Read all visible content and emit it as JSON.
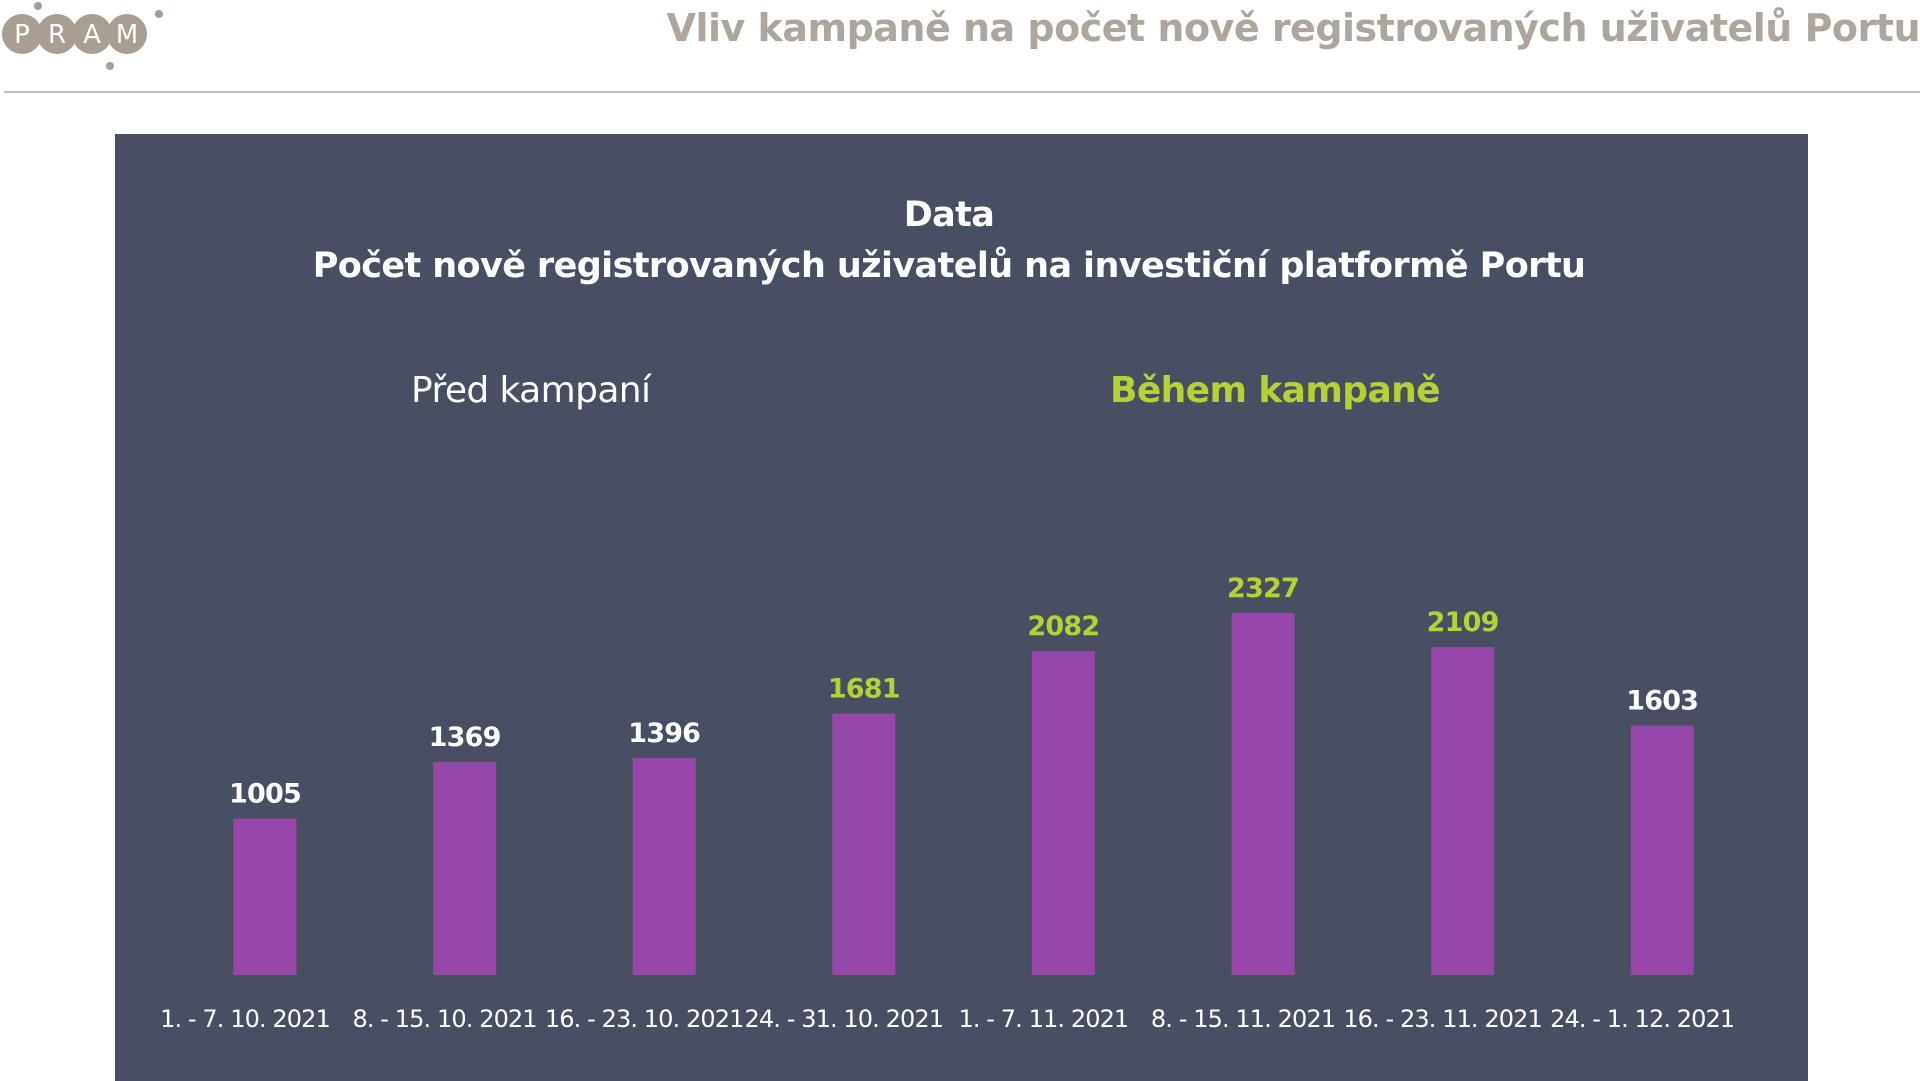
{
  "header": {
    "logo_text": "PRAM",
    "title": "Vliv kampaně na počet nově registrovaných uživatelů Portu"
  },
  "colors": {
    "panel_bg": "#484f63",
    "bar": "#9446a9",
    "highlight": "#b5d234",
    "text_light": "#ffffff",
    "header_text": "#aea69c",
    "logo_circle": "#a89e93"
  },
  "chart_data": {
    "type": "bar",
    "title": "Data",
    "subtitle": "Počet nově registrovaných uživatelů na investiční platformě Portu",
    "group_labels": {
      "before": "Před kampaní",
      "during": "Během kampaně"
    },
    "categories": [
      "1. - 7. 10. 2021",
      "8. - 15. 10. 2021",
      "16. - 23. 10. 2021",
      "24. - 31. 10. 2021",
      "1. - 7. 11. 2021",
      "8. - 15. 11. 2021",
      "16. - 23. 11. 2021",
      "24. - 1. 12. 2021"
    ],
    "values": [
      1005,
      1369,
      1396,
      1681,
      2082,
      2327,
      2109,
      1603
    ],
    "highlighted": [
      false,
      false,
      false,
      true,
      true,
      true,
      true,
      false
    ],
    "ylim": [
      0,
      2327
    ],
    "grid": false,
    "legend": "none"
  }
}
